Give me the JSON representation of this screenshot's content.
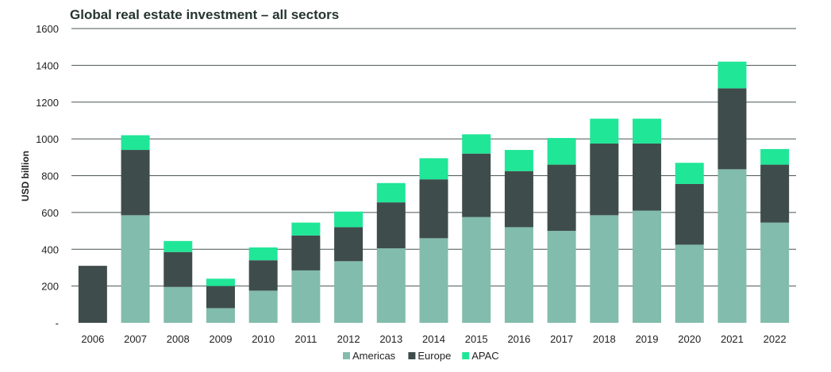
{
  "chart_data": {
    "type": "bar",
    "stacked": true,
    "title": "Global real estate investment – all sectors",
    "xlabel": "",
    "ylabel": "USD billion",
    "ylim": [
      0,
      1600
    ],
    "yticks": [
      {
        "value": 0,
        "label": "-"
      },
      {
        "value": 200,
        "label": "200"
      },
      {
        "value": 400,
        "label": "400"
      },
      {
        "value": 600,
        "label": "600"
      },
      {
        "value": 800,
        "label": "800"
      },
      {
        "value": 1000,
        "label": "1000"
      },
      {
        "value": 1200,
        "label": "1200"
      },
      {
        "value": 1400,
        "label": "1400"
      },
      {
        "value": 1600,
        "label": "1600"
      }
    ],
    "grid": true,
    "legend_position": "bottom",
    "categories": [
      "2006",
      "2007",
      "2008",
      "2009",
      "2010",
      "2011",
      "2012",
      "2013",
      "2014",
      "2015",
      "2016",
      "2017",
      "2018",
      "2019",
      "2020",
      "2021",
      "2022"
    ],
    "series": [
      {
        "name": "Americas",
        "color": "#82bcac",
        "values": [
          0,
          585,
          195,
          80,
          175,
          285,
          335,
          405,
          460,
          575,
          520,
          500,
          585,
          610,
          425,
          835,
          545
        ]
      },
      {
        "name": "Europe",
        "color": "#3f4c4c",
        "values": [
          310,
          355,
          190,
          120,
          165,
          190,
          185,
          250,
          320,
          345,
          305,
          360,
          390,
          365,
          330,
          440,
          315
        ]
      },
      {
        "name": "APAC",
        "color": "#20e697",
        "values": [
          0,
          80,
          60,
          40,
          70,
          70,
          85,
          105,
          115,
          105,
          115,
          145,
          135,
          135,
          115,
          145,
          85
        ]
      }
    ]
  }
}
